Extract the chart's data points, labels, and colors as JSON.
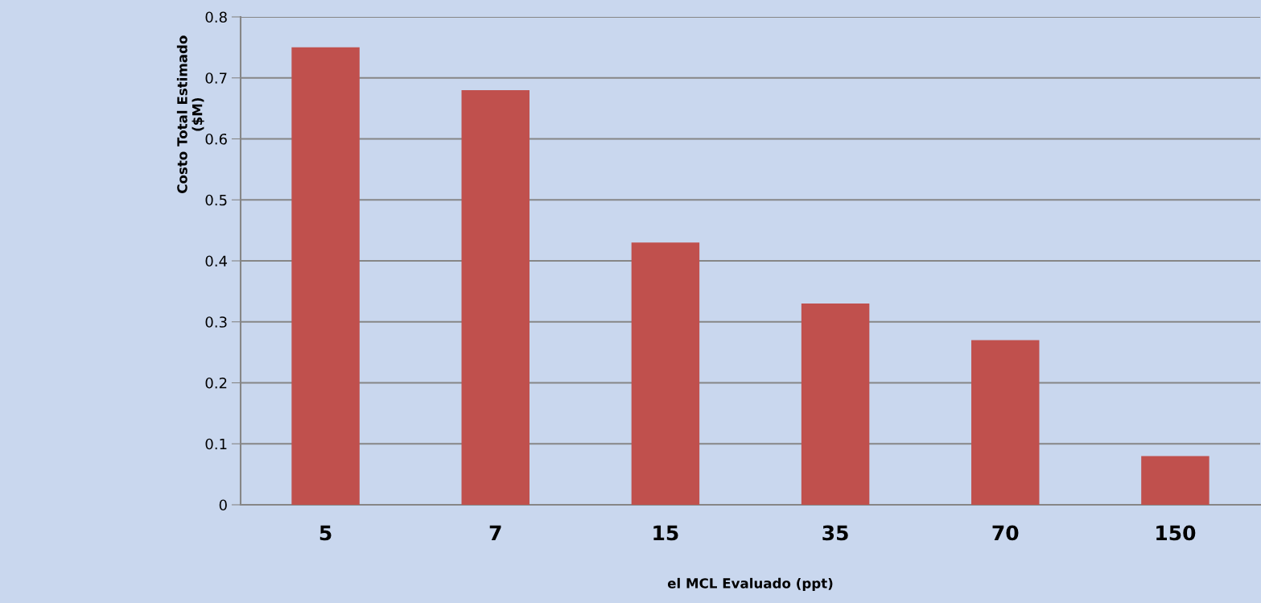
{
  "chart_data": {
    "type": "bar",
    "xlabel": "el MCL Evaluado (ppt)",
    "ylabel": "Costo Total Estimado\n($M)",
    "categories": [
      "5",
      "7",
      "15",
      "35",
      "70",
      "150"
    ],
    "values": [
      0.75,
      0.68,
      0.43,
      0.33,
      0.27,
      0.08
    ],
    "color": "#c0504d",
    "ylim": [
      0,
      0.8
    ],
    "yticks": [
      0,
      0.1,
      0.2,
      0.3,
      0.4,
      0.5,
      0.6,
      0.7,
      0.8
    ],
    "grid": "y",
    "legend": false
  }
}
